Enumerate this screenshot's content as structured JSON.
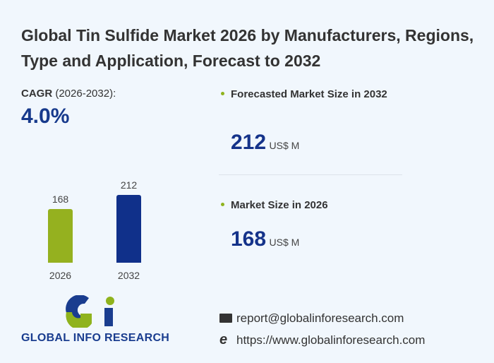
{
  "title": "Global Tin Sulfide Market 2026 by Manufacturers, Regions, Type and Application, Forecast to 2032",
  "cagr": {
    "label_bold": "CAGR",
    "label_rest": "(2026-2032):",
    "value": "4.0%"
  },
  "forecast": {
    "label": "Forecasted Market Size in 2032",
    "value": "212",
    "unit": "US$ M"
  },
  "current": {
    "label": "Market Size in 2026",
    "value": "168",
    "unit": "US$ M"
  },
  "chart_data": {
    "type": "bar",
    "categories": [
      "2026",
      "2032"
    ],
    "values": [
      168,
      212
    ],
    "labels": [
      "168",
      "212"
    ],
    "colors": [
      "#95b11f",
      "#10308a"
    ],
    "ylim": [
      0,
      212
    ]
  },
  "logo": {
    "text": "GLOBAL INFO RESEARCH"
  },
  "contact": {
    "email": "report@globalinforesearch.com",
    "website": "https://www.globalinforesearch.com"
  },
  "colors": {
    "accent_green": "#8fb31d",
    "brand_blue": "#15338a"
  }
}
